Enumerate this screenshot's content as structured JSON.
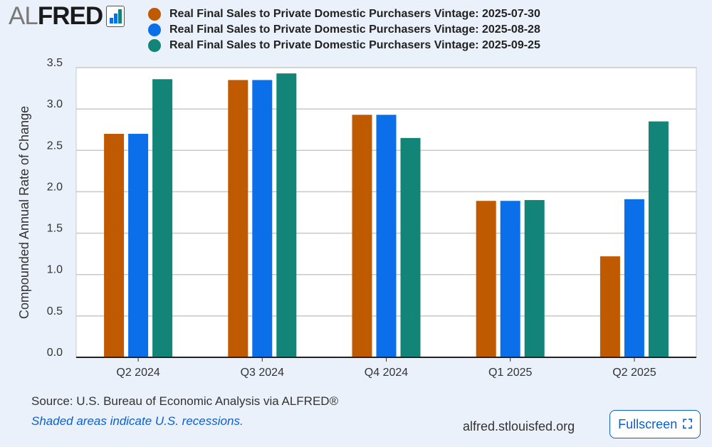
{
  "logo": {
    "text_light": "AL",
    "text_bold": "FRED"
  },
  "chart_data": {
    "type": "bar",
    "categories": [
      "Q2 2024",
      "Q3 2024",
      "Q4 2024",
      "Q1 2025",
      "Q2 2025"
    ],
    "series": [
      {
        "name": "Real Final Sales to Private Domestic Purchasers Vintage: 2025-07-30",
        "color": "#c05a00",
        "values": [
          2.7,
          3.35,
          2.93,
          1.89,
          1.22
        ]
      },
      {
        "name": "Real Final Sales to Private Domestic Purchasers Vintage: 2025-08-28",
        "color": "#0a6fe8",
        "values": [
          2.7,
          3.35,
          2.93,
          1.89,
          1.91
        ]
      },
      {
        "name": "Real Final Sales to Private Domestic Purchasers Vintage: 2025-09-25",
        "color": "#138478",
        "values": [
          3.36,
          3.43,
          2.65,
          1.9,
          2.85
        ]
      }
    ],
    "ylabel": "Compounded Annual Rate of Change",
    "ylim": [
      0,
      3.5
    ],
    "yticks": [
      "0.0",
      "0.5",
      "1.0",
      "1.5",
      "2.0",
      "2.5",
      "3.0",
      "3.5"
    ],
    "grid": true,
    "legend": "top"
  },
  "footer": {
    "source": "Source: U.S. Bureau of Economic Analysis via ALFRED®",
    "recessions": "Shaded areas indicate U.S. recessions.",
    "site": "alfred.stlouisfed.org",
    "fullscreen": "Fullscreen"
  }
}
